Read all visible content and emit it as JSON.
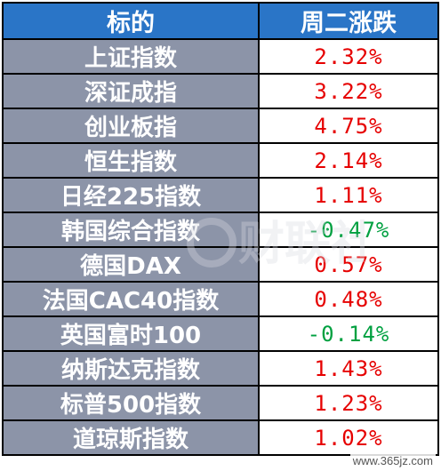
{
  "table": {
    "header": {
      "name_col": "标的",
      "change_col": "周二涨跌"
    },
    "up_color": "#e60000",
    "down_color": "#00a040",
    "rows": [
      {
        "name": "上证指数",
        "change": "2.32%",
        "direction": "up"
      },
      {
        "name": "深证成指",
        "change": "3.22%",
        "direction": "up"
      },
      {
        "name": "创业板指",
        "change": "4.75%",
        "direction": "up"
      },
      {
        "name": "恒生指数",
        "change": "2.14%",
        "direction": "up"
      },
      {
        "name": "日经225指数",
        "change": "1.11%",
        "direction": "up"
      },
      {
        "name": "韩国综合指数",
        "change": "-0.47%",
        "direction": "down"
      },
      {
        "name": "德国DAX",
        "change": "0.57%",
        "direction": "up"
      },
      {
        "name": "法国CAC40指数",
        "change": "0.48%",
        "direction": "up"
      },
      {
        "name": "英国富时100",
        "change": "-0.14%",
        "direction": "down"
      },
      {
        "name": "纳斯达克指数",
        "change": "1.43%",
        "direction": "up"
      },
      {
        "name": "标普500指数",
        "change": "1.23%",
        "direction": "up"
      },
      {
        "name": "道琼斯指数",
        "change": "1.02%",
        "direction": "up"
      }
    ]
  },
  "watermark": {
    "text": "财联社"
  },
  "footer": {
    "site": "www.365jz.com"
  }
}
